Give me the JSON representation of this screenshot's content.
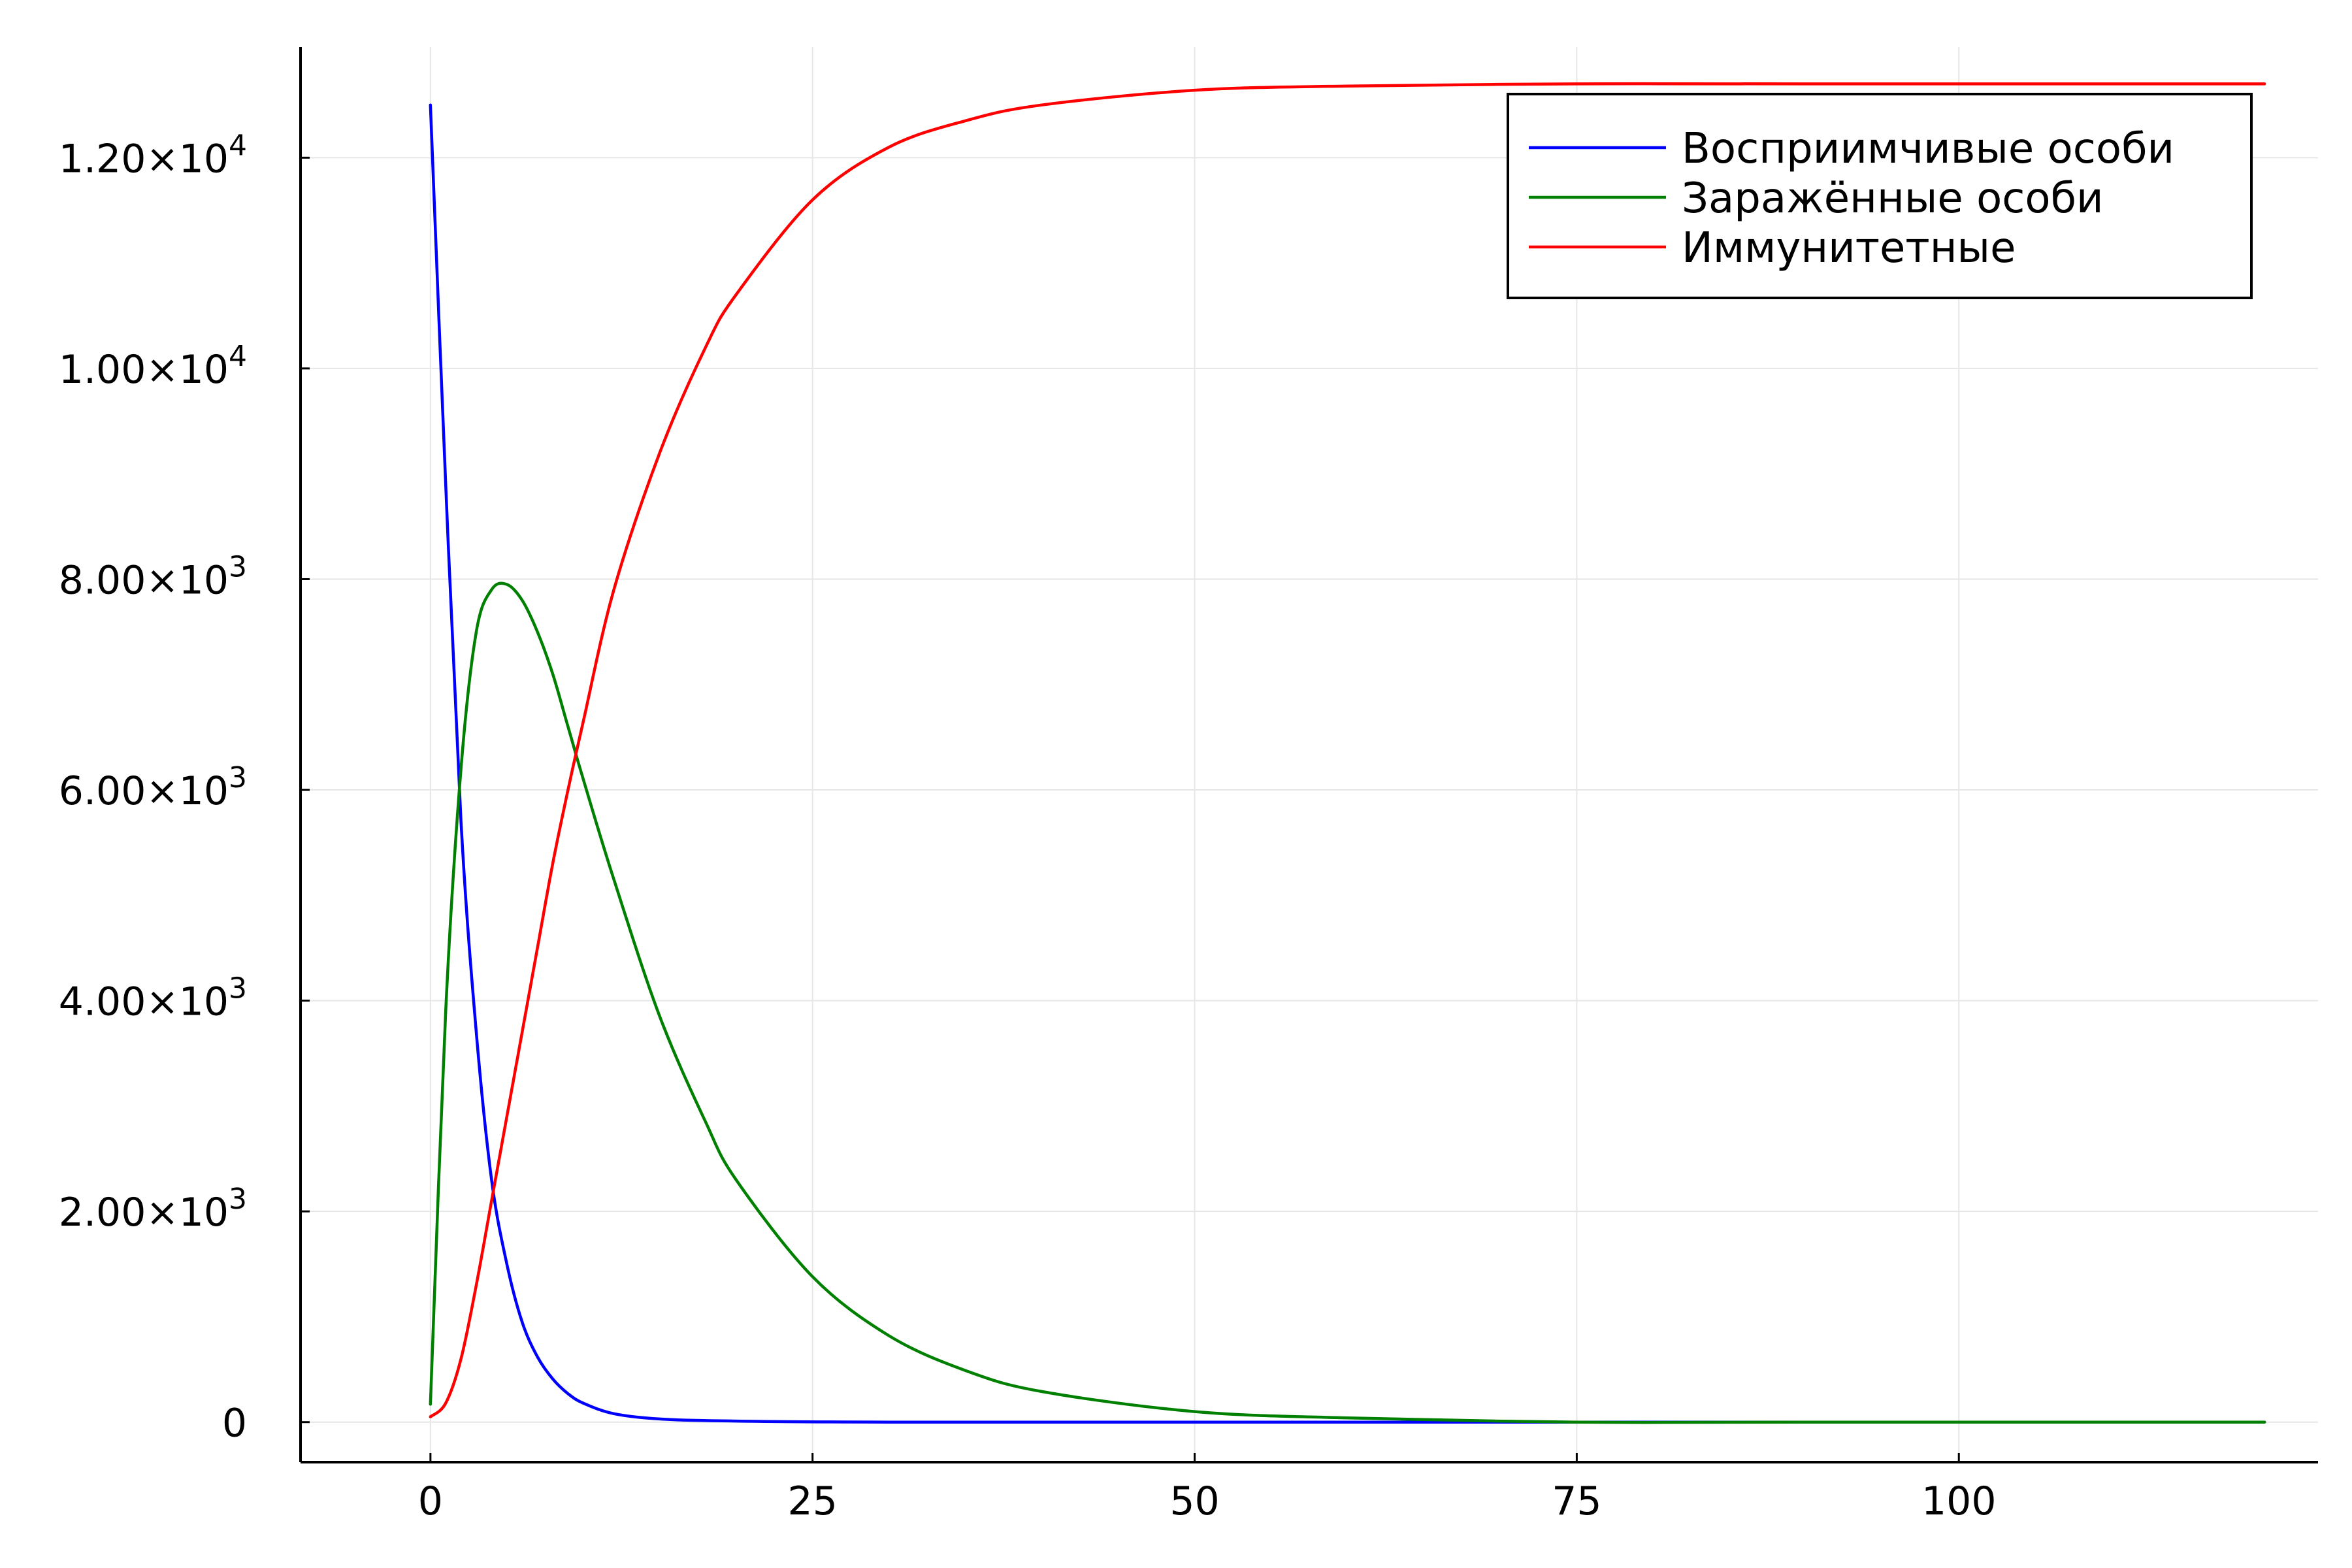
{
  "chart_data": {
    "type": "line",
    "title": "",
    "xlabel": "",
    "ylabel": "",
    "xlim": [
      -8.5,
      123.5
    ],
    "ylim": [
      -380,
      13050
    ],
    "grid": true,
    "legend_position": "top-right",
    "x_ticks": [
      {
        "value": 0,
        "label": "0"
      },
      {
        "value": 25,
        "label": "25"
      },
      {
        "value": 50,
        "label": "50"
      },
      {
        "value": 75,
        "label": "75"
      },
      {
        "value": 100,
        "label": "100"
      }
    ],
    "y_ticks": [
      {
        "value": 0,
        "mantissa": "0",
        "exponent": ""
      },
      {
        "value": 2000,
        "mantissa": "2.00×10",
        "exponent": "3"
      },
      {
        "value": 4000,
        "mantissa": "4.00×10",
        "exponent": "3"
      },
      {
        "value": 6000,
        "mantissa": "6.00×10",
        "exponent": "3"
      },
      {
        "value": 8000,
        "mantissa": "8.00×10",
        "exponent": "3"
      },
      {
        "value": 10000,
        "mantissa": "1.00×10",
        "exponent": "4"
      },
      {
        "value": 12000,
        "mantissa": "1.20×10",
        "exponent": "4"
      }
    ],
    "series": [
      {
        "name": "Восприимчивые особи",
        "color": "#0000ff",
        "points": [
          [
            0,
            12500
          ],
          [
            1,
            8900
          ],
          [
            2,
            5700
          ],
          [
            3,
            3700
          ],
          [
            4,
            2300
          ],
          [
            5,
            1500
          ],
          [
            6,
            950
          ],
          [
            7,
            620
          ],
          [
            8,
            410
          ],
          [
            9,
            270
          ],
          [
            10,
            180
          ],
          [
            12,
            80
          ],
          [
            15,
            30
          ],
          [
            20,
            10
          ],
          [
            30,
            0
          ],
          [
            60,
            0
          ],
          [
            90,
            0
          ],
          [
            120,
            0
          ]
        ]
      },
      {
        "name": "Заражённые особи",
        "color": "#008000",
        "points": [
          [
            0,
            170
          ],
          [
            1,
            3900
          ],
          [
            2,
            6200
          ],
          [
            3,
            7500
          ],
          [
            4,
            7900
          ],
          [
            5,
            7950
          ],
          [
            6,
            7800
          ],
          [
            7,
            7500
          ],
          [
            8,
            7100
          ],
          [
            9,
            6600
          ],
          [
            10,
            6100
          ],
          [
            12,
            5150
          ],
          [
            15,
            3850
          ],
          [
            18,
            2850
          ],
          [
            20,
            2300
          ],
          [
            25,
            1380
          ],
          [
            30,
            820
          ],
          [
            35,
            490
          ],
          [
            40,
            290
          ],
          [
            50,
            100
          ],
          [
            60,
            40
          ],
          [
            75,
            0
          ],
          [
            90,
            0
          ],
          [
            120,
            0
          ]
        ]
      },
      {
        "name": "Иммунитетные",
        "color": "#ff0000",
        "points": [
          [
            0,
            50
          ],
          [
            1,
            180
          ],
          [
            2,
            600
          ],
          [
            3,
            1300
          ],
          [
            4,
            2100
          ],
          [
            5,
            2900
          ],
          [
            6,
            3700
          ],
          [
            7,
            4500
          ],
          [
            8,
            5300
          ],
          [
            9,
            6000
          ],
          [
            10,
            6650
          ],
          [
            12,
            7900
          ],
          [
            15,
            9200
          ],
          [
            18,
            10200
          ],
          [
            20,
            10700
          ],
          [
            25,
            11600
          ],
          [
            30,
            12100
          ],
          [
            35,
            12350
          ],
          [
            40,
            12500
          ],
          [
            50,
            12640
          ],
          [
            60,
            12680
          ],
          [
            75,
            12700
          ],
          [
            90,
            12700
          ],
          [
            120,
            12700
          ]
        ]
      }
    ]
  }
}
